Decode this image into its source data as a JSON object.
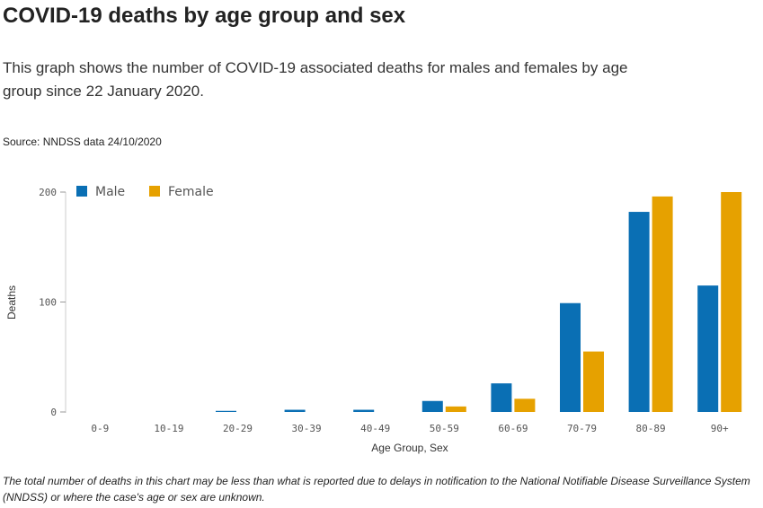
{
  "header": {
    "title": "COVID-19 deaths by age group and sex",
    "description": "This graph shows the number of COVID-19 associated deaths for males and females by age group since 22 January 2020.",
    "source": "Source: NNDSS data 24/10/2020"
  },
  "footnote": "The total number of deaths in this chart may be less than what is reported due to delays in notification to the National Notifiable Disease Surveillance System (NNDSS) or where the case's age or sex are unknown.",
  "chart_data": {
    "type": "bar",
    "title": "",
    "xlabel": "Age Group, Sex",
    "ylabel": "Deaths",
    "ylim": [
      0,
      200
    ],
    "yticks": [
      0,
      100,
      200
    ],
    "grid": false,
    "legend_position": "top-left",
    "categories": [
      "0-9",
      "10-19",
      "20-29",
      "30-39",
      "40-49",
      "50-59",
      "60-69",
      "70-79",
      "80-89",
      "90+"
    ],
    "series": [
      {
        "name": "Male",
        "color": "#0a6fb4",
        "values": [
          0,
          0,
          1,
          2,
          2,
          10,
          26,
          99,
          182,
          115
        ]
      },
      {
        "name": "Female",
        "color": "#e6a100",
        "values": [
          0,
          0,
          0,
          0,
          0,
          5,
          12,
          55,
          196,
          200
        ]
      }
    ]
  }
}
